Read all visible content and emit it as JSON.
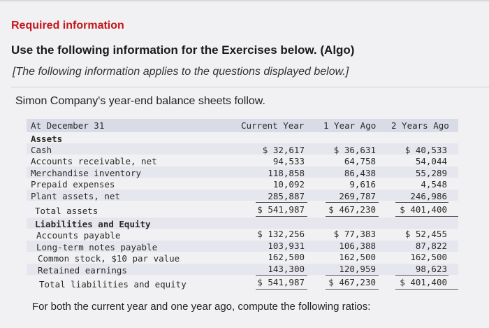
{
  "heading": {
    "required": "Required information",
    "instructions": "Use the following information for the Exercises below. (Algo)",
    "applies": "[The following information applies to the questions displayed below.]",
    "intro": "Simon Company's year-end balance sheets follow."
  },
  "table": {
    "columns": [
      "At December 31",
      "Current Year",
      "1 Year Ago",
      "2 Years Ago"
    ],
    "assets_heading": "Assets",
    "assets_rows": [
      {
        "label": "Cash",
        "current": "$ 32,617",
        "ago1": "$ 36,631",
        "ago2": "$ 40,533"
      },
      {
        "label": "Accounts receivable, net",
        "current": "94,533",
        "ago1": "64,758",
        "ago2": "54,044"
      },
      {
        "label": "Merchandise inventory",
        "current": "118,858",
        "ago1": "86,438",
        "ago2": "55,289"
      },
      {
        "label": "Prepaid expenses",
        "current": "10,092",
        "ago1": "9,616",
        "ago2": "4,548"
      },
      {
        "label": "Plant assets, net",
        "current": "285,887",
        "ago1": "269,787",
        "ago2": "246,986"
      }
    ],
    "assets_total": {
      "label": "Total assets",
      "current": "$ 541,987",
      "ago1": "$ 467,230",
      "ago2": "$ 401,400"
    },
    "liab_heading": "Liabilities and Equity",
    "liab_rows": [
      {
        "label": "Accounts payable",
        "current": "$ 132,256",
        "ago1": "$ 77,383",
        "ago2": "$ 52,455"
      },
      {
        "label": "Long-term notes payable",
        "current": "103,931",
        "ago1": "106,388",
        "ago2": "87,822"
      },
      {
        "label": "Common stock, $10 par value",
        "current": "162,500",
        "ago1": "162,500",
        "ago2": "162,500"
      },
      {
        "label": "Retained earnings",
        "current": "143,300",
        "ago1": "120,959",
        "ago2": "98,623"
      }
    ],
    "liab_total": {
      "label": "Total liabilities and equity",
      "current": "$ 541,987",
      "ago1": "$ 467,230",
      "ago2": "$ 401,400"
    }
  },
  "closing": "For both the current year and one year ago, compute the following ratios:"
}
